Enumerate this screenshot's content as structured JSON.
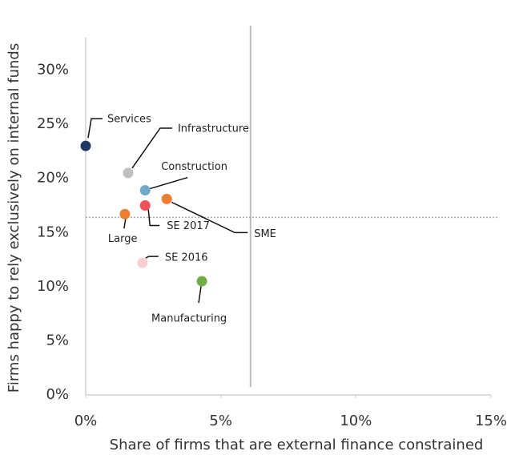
{
  "chart_data": {
    "type": "scatter",
    "xlabel": "Share of firms that are external finance constrained",
    "ylabel": "Firms happy to rely exclusively on internal funds",
    "xlim": [
      0,
      15
    ],
    "ylim": [
      0,
      33
    ],
    "xticks": [
      {
        "value": 0,
        "label": "0%"
      },
      {
        "value": 5,
        "label": "5%"
      },
      {
        "value": 10,
        "label": "10%"
      },
      {
        "value": 15,
        "label": "15%"
      }
    ],
    "yticks": [
      {
        "value": 0,
        "label": "0%"
      },
      {
        "value": 5,
        "label": "5%"
      },
      {
        "value": 10,
        "label": "10%"
      },
      {
        "value": 15,
        "label": "15%"
      },
      {
        "value": 20,
        "label": "20%"
      },
      {
        "value": 25,
        "label": "25%"
      },
      {
        "value": 30,
        "label": "30%"
      }
    ],
    "vline": 6.1,
    "hline": 16.4,
    "series": [
      {
        "name": "Services",
        "color": "#1f3864",
        "x": [
          0
        ],
        "values": [
          23.0
        ]
      },
      {
        "name": "Infrastructure",
        "color": "#c0c0c0",
        "x": [
          1.57
        ],
        "values": [
          20.5
        ]
      },
      {
        "name": "Construction",
        "color": "#6fa8c8",
        "x": [
          2.2
        ],
        "values": [
          18.9
        ]
      },
      {
        "name": "SME",
        "color": "#ed7d31",
        "x": [
          3.0
        ],
        "values": [
          18.1
        ]
      },
      {
        "name": "SE 2017",
        "color": "#f4505a",
        "x": [
          2.2
        ],
        "values": [
          17.5
        ]
      },
      {
        "name": "Large",
        "color": "#ed7d31",
        "x": [
          1.45
        ],
        "values": [
          16.7
        ]
      },
      {
        "name": "SE 2016",
        "color": "#f8d0d0",
        "x": [
          2.1
        ],
        "values": [
          12.2
        ]
      },
      {
        "name": "Manufacturing",
        "color": "#70ad47",
        "x": [
          4.3
        ],
        "values": [
          10.5
        ]
      }
    ]
  }
}
